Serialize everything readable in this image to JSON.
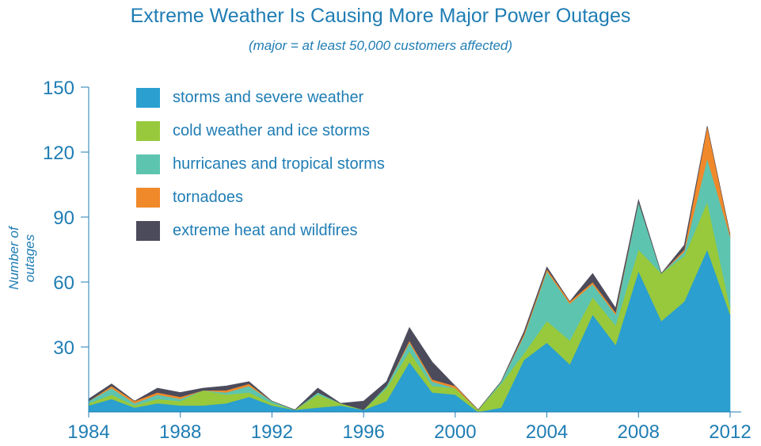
{
  "chart_data": {
    "type": "area",
    "stacked": true,
    "title": "Extreme Weather Is Causing More Major Power Outages",
    "subtitle": "(major = at least 50,000 customers affected)",
    "xlabel": "",
    "ylabel": "Number of outages",
    "x": [
      1984,
      1985,
      1986,
      1987,
      1988,
      1989,
      1990,
      1991,
      1992,
      1993,
      1994,
      1995,
      1996,
      1997,
      1998,
      1999,
      2000,
      2001,
      2002,
      2003,
      2004,
      2005,
      2006,
      2007,
      2008,
      2009,
      2010,
      2011,
      2012
    ],
    "xticks": [
      "1984",
      "1988",
      "1992",
      "1996",
      "2000",
      "2004",
      "2008",
      "2012"
    ],
    "yticks": [
      "30",
      "60",
      "90",
      "120",
      "150"
    ],
    "ylim": [
      0,
      150
    ],
    "grid": false,
    "legend_position": "top-left",
    "series": [
      {
        "name": "storms and severe weather",
        "color": "#2a9fd0",
        "values": [
          3,
          6,
          2,
          4,
          3,
          3,
          4,
          7,
          3,
          1,
          2,
          3,
          1,
          5,
          23,
          9,
          8,
          0,
          2,
          24,
          32,
          22,
          45,
          31,
          65,
          42,
          51,
          75,
          45
        ]
      },
      {
        "name": "cold weather and ice storms",
        "color": "#98c93c",
        "values": [
          1,
          2,
          1,
          2,
          2,
          7,
          4,
          2,
          1,
          0,
          6,
          1,
          0,
          6,
          5,
          3,
          3,
          1,
          11,
          3,
          10,
          11,
          8,
          9,
          10,
          22,
          21,
          22,
          3
        ]
      },
      {
        "name": "hurricanes and tropical storms",
        "color": "#5dc4b0",
        "values": [
          1,
          3,
          1,
          2,
          1,
          0,
          1,
          3,
          1,
          0,
          1,
          0,
          0,
          1,
          4,
          2,
          0,
          0,
          1,
          8,
          23,
          17,
          6,
          5,
          22,
          0,
          2,
          20,
          33
        ]
      },
      {
        "name": "tornadoes",
        "color": "#f0892a",
        "values": [
          0,
          1,
          1,
          1,
          1,
          0,
          1,
          1,
          0,
          0,
          0,
          0,
          0,
          0,
          1,
          1,
          1,
          0,
          0,
          1,
          1,
          1,
          1,
          1,
          0,
          0,
          1,
          15,
          1
        ]
      },
      {
        "name": "extreme heat and wildfires",
        "color": "#4b4b5c",
        "values": [
          1,
          1,
          0,
          2,
          2,
          1,
          2,
          1,
          0,
          0,
          2,
          0,
          4,
          2,
          6,
          8,
          0,
          0,
          0,
          1,
          1,
          0,
          4,
          2,
          1,
          0,
          2,
          0,
          0
        ]
      }
    ]
  }
}
